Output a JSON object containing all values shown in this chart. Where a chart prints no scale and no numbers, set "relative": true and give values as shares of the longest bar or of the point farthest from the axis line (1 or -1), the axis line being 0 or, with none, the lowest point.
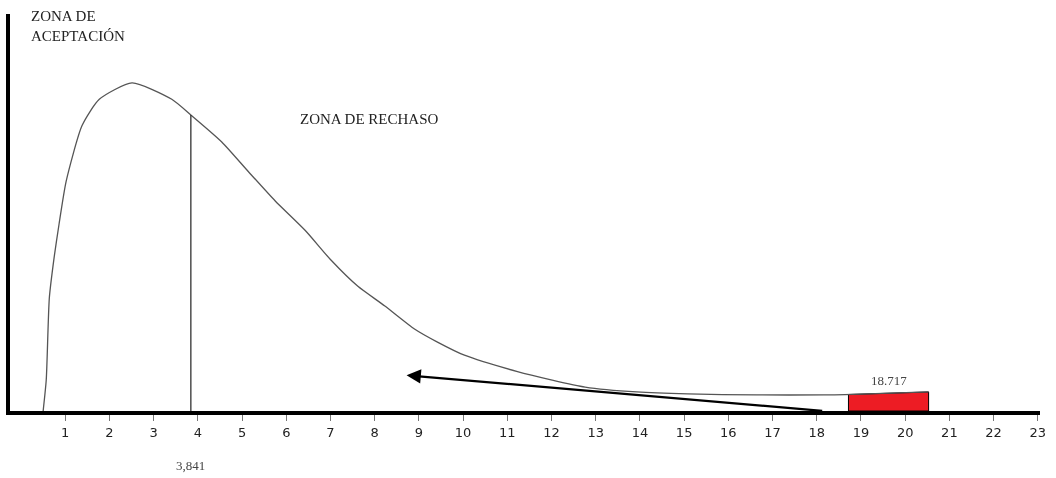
{
  "chart_data": {
    "type": "line",
    "relative": true,
    "x": [
      0.5,
      0.57,
      0.64,
      0.75,
      0.86,
      1.02,
      1.38,
      1.77,
      2.51,
      3.41,
      3.86,
      4.54,
      5.14,
      5.75,
      6.43,
      7.01,
      7.62,
      8.23,
      8.9,
      9.42,
      10.03,
      11.23,
      11.99,
      12.76,
      13.93,
      15.08,
      16.63,
      18.16,
      18.64,
      20.53
    ],
    "series": [
      {
        "color": "#555555",
        "values": [
          0,
          0.095,
          0.345,
          0.47,
          0.57,
          0.7,
          0.87,
          0.95,
          1.0,
          0.95,
          0.9,
          0.82,
          0.73,
          0.64,
          0.55,
          0.46,
          0.38,
          0.32,
          0.25,
          0.21,
          0.17,
          0.12,
          0.095,
          0.073,
          0.058,
          0.052,
          0.049,
          0.049,
          0.05,
          0.058
        ]
      }
    ],
    "xlim": [
      -0.25,
      23.05
    ],
    "xticks": [
      1,
      2,
      3,
      4,
      5,
      6,
      7,
      8,
      9,
      10,
      11,
      12,
      13,
      14,
      15,
      16,
      17,
      18,
      19,
      20,
      21,
      22,
      23
    ],
    "ref_lines": [
      {
        "axis": "x",
        "value": 3.841,
        "label": "3,841",
        "color": "#333333"
      }
    ],
    "bands": [
      {
        "axis": "x",
        "from": 18.717,
        "to": 20.53,
        "label": "18.717",
        "color": "#ed1c24"
      }
    ],
    "annotations": [
      "ZONA DE ACEPTACIÓN",
      "ZONA DE RECHASO"
    ],
    "grid": false,
    "marker": "none",
    "line_style": "solid"
  }
}
